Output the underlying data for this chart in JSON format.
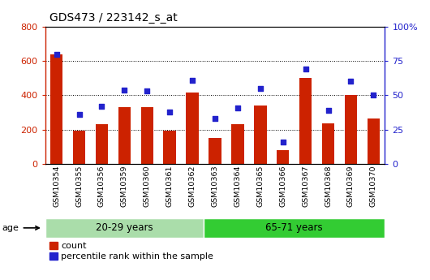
{
  "title": "GDS473 / 223142_s_at",
  "samples": [
    "GSM10354",
    "GSM10355",
    "GSM10356",
    "GSM10359",
    "GSM10360",
    "GSM10361",
    "GSM10362",
    "GSM10363",
    "GSM10364",
    "GSM10365",
    "GSM10366",
    "GSM10367",
    "GSM10368",
    "GSM10369",
    "GSM10370"
  ],
  "counts": [
    640,
    195,
    230,
    330,
    330,
    195,
    415,
    150,
    230,
    340,
    80,
    500,
    235,
    400,
    265
  ],
  "percentiles": [
    80,
    36,
    42,
    54,
    53,
    38,
    61,
    33,
    41,
    55,
    16,
    69,
    39,
    60,
    50
  ],
  "bar_color": "#cc2200",
  "dot_color": "#2222cc",
  "group1_label": "20-29 years",
  "group2_label": "65-71 years",
  "group1_n": 7,
  "group2_n": 8,
  "group1_color": "#aaddaa",
  "group2_color": "#33cc33",
  "age_label": "age",
  "left_ylim": [
    0,
    800
  ],
  "right_ylim": [
    0,
    100
  ],
  "left_yticks": [
    0,
    200,
    400,
    600,
    800
  ],
  "right_yticks": [
    0,
    25,
    50,
    75,
    100
  ],
  "right_yticklabels": [
    "0",
    "25",
    "50",
    "75",
    "100%"
  ],
  "legend_count_label": "count",
  "legend_pct_label": "percentile rank within the sample",
  "plot_bg": "#ffffff",
  "xtick_bg": "#cccccc",
  "border_color": "#000000"
}
